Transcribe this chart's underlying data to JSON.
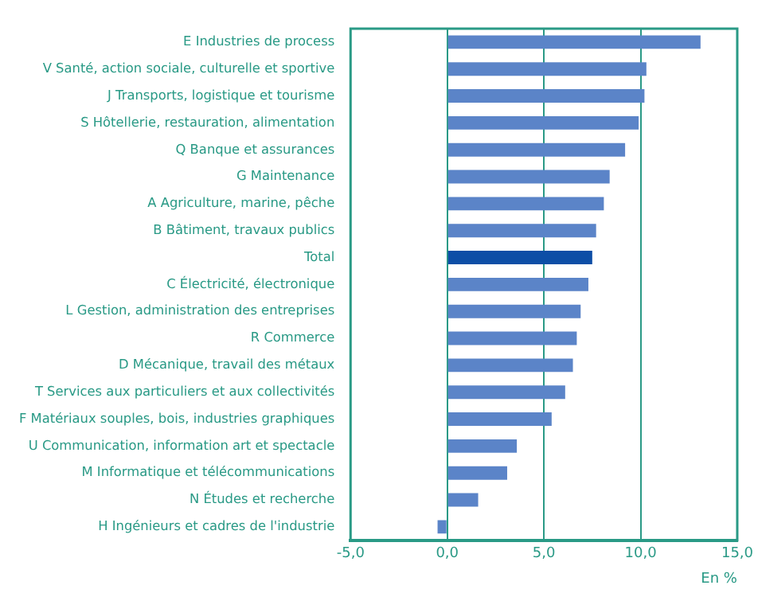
{
  "chart_data": {
    "type": "bar",
    "orientation": "horizontal",
    "xlabel": "En %",
    "categories": [
      "E Industries de process",
      "V Santé, action sociale, culturelle et sportive",
      "J Transports, logistique et tourisme",
      "S Hôtellerie, restauration, alimentation",
      "Q Banque et assurances",
      "G Maintenance",
      "A Agriculture, marine, pêche",
      "B Bâtiment, travaux publics",
      "Total",
      "C Électricité, électronique",
      "L Gestion, administration des entreprises",
      "R Commerce",
      "D Mécanique, travail des métaux",
      "T Services aux particuliers et aux collectivités",
      "F Matériaux souples, bois, industries graphiques",
      "U Communication, information art et spectacle",
      "M Informatique et télécommunications",
      "N Études et recherche",
      "H Ingénieurs et cadres de l'industrie"
    ],
    "values": [
      13.1,
      10.3,
      10.2,
      9.9,
      9.2,
      8.4,
      8.1,
      7.7,
      7.5,
      7.3,
      6.9,
      6.7,
      6.5,
      6.1,
      5.4,
      3.6,
      3.1,
      1.6,
      -0.5
    ],
    "colors": [
      "#5b84c8",
      "#5b84c8",
      "#5b84c8",
      "#5b84c8",
      "#5b84c8",
      "#5b84c8",
      "#5b84c8",
      "#5b84c8",
      "#0d4ea6",
      "#5b84c8",
      "#5b84c8",
      "#5b84c8",
      "#5b84c8",
      "#5b84c8",
      "#5b84c8",
      "#5b84c8",
      "#5b84c8",
      "#5b84c8",
      "#5b84c8"
    ],
    "xlim": [
      -5,
      15
    ],
    "xticks": [
      {
        "value": -5,
        "label": "-5,0"
      },
      {
        "value": 0,
        "label": "0,0"
      },
      {
        "value": 5,
        "label": "5,0"
      },
      {
        "value": 10,
        "label": "10,0"
      },
      {
        "value": 15,
        "label": "15,0"
      }
    ],
    "grid": "x",
    "legend": false
  }
}
